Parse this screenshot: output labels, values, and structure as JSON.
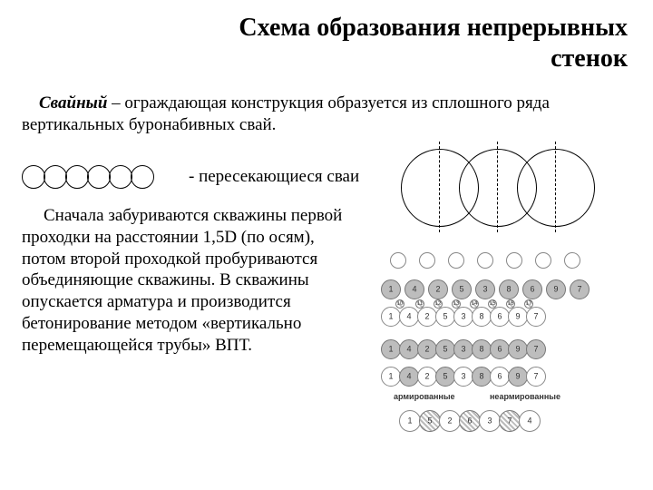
{
  "title_line1": "Схема образования непрерывных",
  "title_line2": "стенок",
  "definition_lead": "Свайный",
  "definition_rest": " – ограждающая конструкция образуется из сплошного ряда вертикальных буронабивных свай.",
  "label_intersecting": "- пересекающиеся сваи",
  "body": "Сначала забуриваются скважины первой проходки на расстоянии 1,5D (по осям), потом второй проходкой пробуриваются объединяющие скважины. В скважины опускается арматура и производится бетонирование методом «вертикально перемещающейся трубы» ВПТ.",
  "small_circle_count": 6,
  "big_circles": {
    "d": 84,
    "overlap": 20,
    "x_positions": [
      0,
      64,
      128
    ]
  },
  "diagram": {
    "row1": {
      "style": "outline",
      "d": 18,
      "gap": 14,
      "labels": [
        "",
        "",
        "",
        "",
        "",
        "",
        ""
      ]
    },
    "row2": {
      "style": "grey",
      "d": 22,
      "gap": 8,
      "labels": [
        "1",
        "4",
        "2",
        "5",
        "3",
        "8",
        "6",
        "9",
        "7"
      ]
    },
    "row3": {
      "style": "outline",
      "d": 22,
      "gap": 4,
      "labels": [
        "1",
        "4",
        "2",
        "5",
        "3",
        "8",
        "6",
        "9",
        "7"
      ]
    },
    "row3_tops": {
      "labels": [
        "10",
        "11",
        "12",
        "13",
        "14",
        "15",
        "16",
        "17"
      ]
    },
    "row4": {
      "style": "grey",
      "d": 22,
      "gap": 4,
      "labels": [
        "1",
        "4",
        "2",
        "5",
        "3",
        "8",
        "6",
        "9",
        "7"
      ]
    },
    "row5": {
      "base": "outline",
      "alt": "grey",
      "d": 22,
      "gap": 4,
      "labels": [
        "1",
        "4",
        "2",
        "5",
        "3",
        "8",
        "6",
        "9",
        "7"
      ]
    },
    "labels": {
      "left": "армированные",
      "right": "неармированные"
    },
    "row6": {
      "base": "outline",
      "alt": "hatched",
      "d": 24,
      "gap": 2,
      "labels": [
        "1",
        "5",
        "2",
        "6",
        "3",
        "7",
        "4"
      ]
    }
  },
  "colors": {
    "text": "#000000",
    "bg": "#ffffff",
    "grey": "#bdbdbd",
    "outline": "#888888"
  }
}
